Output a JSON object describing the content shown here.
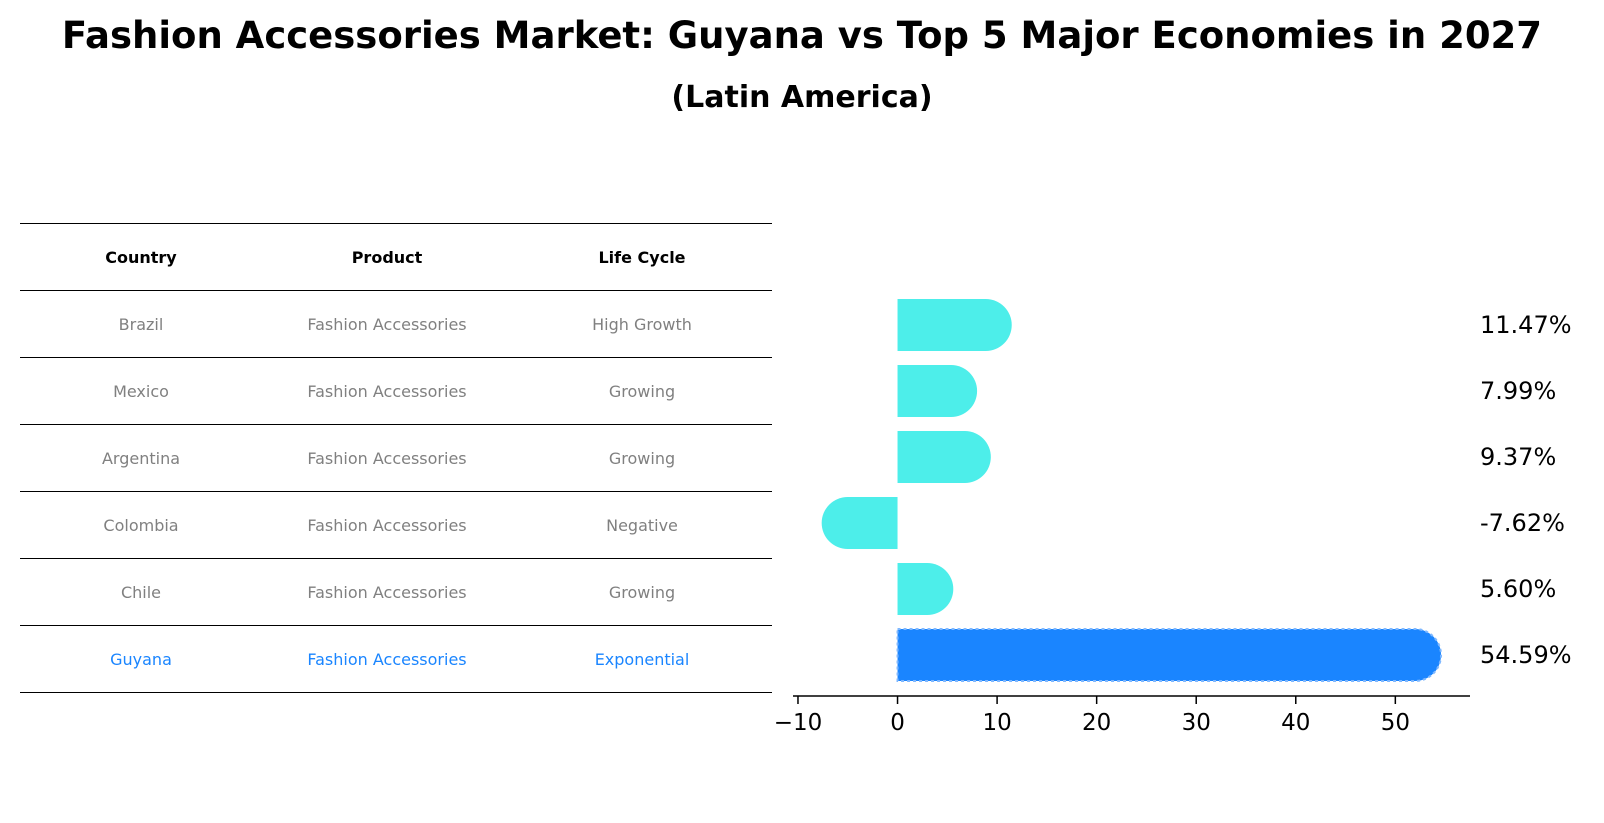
{
  "title": "Fashion Accessories Market: Guyana vs Top 5 Major Economies in 2027",
  "subtitle": "(Latin America)",
  "table": {
    "headers": [
      "Country",
      "Product",
      "Life Cycle"
    ],
    "rows": [
      {
        "country": "Brazil",
        "product": "Fashion Accessories",
        "life_cycle": "High Growth"
      },
      {
        "country": "Mexico",
        "product": "Fashion Accessories",
        "life_cycle": "Growing"
      },
      {
        "country": "Argentina",
        "product": "Fashion Accessories",
        "life_cycle": "Growing"
      },
      {
        "country": "Colombia",
        "product": "Fashion Accessories",
        "life_cycle": "Negative"
      },
      {
        "country": "Chile",
        "product": "Fashion Accessories",
        "life_cycle": "Growing"
      },
      {
        "country": "Guyana",
        "product": "Fashion Accessories",
        "life_cycle": "Exponential"
      }
    ]
  },
  "colors": {
    "bar": "#4deeea",
    "highlight": "#1a85ff",
    "muted_text": "#808080"
  },
  "chart_data": {
    "type": "bar",
    "orientation": "horizontal",
    "categories": [
      "Brazil",
      "Mexico",
      "Argentina",
      "Colombia",
      "Chile",
      "Guyana"
    ],
    "values": [
      11.47,
      7.99,
      9.37,
      -7.62,
      5.6,
      54.59
    ],
    "value_labels": [
      "11.47%",
      "7.99%",
      "9.37%",
      "-7.62%",
      "5.60%",
      "54.59%"
    ],
    "highlight_index": 5,
    "xticks": [
      -10,
      0,
      10,
      20,
      30,
      40,
      50
    ],
    "xtick_labels": [
      "−10",
      "0",
      "10",
      "20",
      "30",
      "40",
      "50"
    ],
    "xlim": [
      -10.5,
      57.5
    ],
    "xlabel": "",
    "ylabel": ""
  }
}
